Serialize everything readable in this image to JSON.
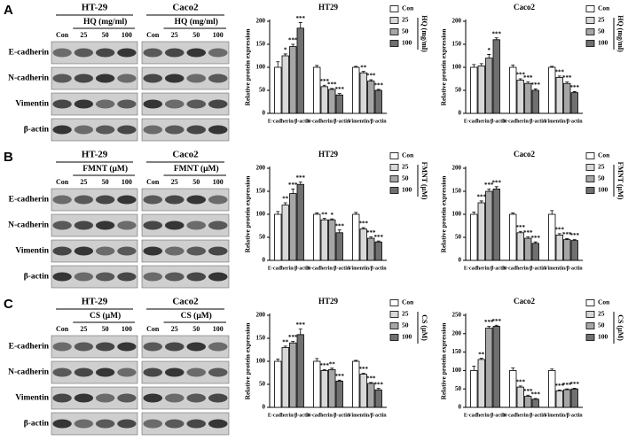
{
  "panels": [
    {
      "label": "A",
      "blot": {
        "cell_lines": [
          "HT-29",
          "Caco2"
        ],
        "treatment": "HQ (mg/ml)",
        "lanes": [
          "Con",
          "25",
          "50",
          "100"
        ],
        "proteins": [
          "E-cadherin",
          "N-cadherin",
          "Vimentin",
          "β-actin"
        ]
      }
    },
    {
      "label": "B",
      "blot": {
        "cell_lines": [
          "HT-29",
          "Caco2"
        ],
        "treatment": "FMNT (μM)",
        "lanes": [
          "Con",
          "25",
          "50",
          "100"
        ],
        "proteins": [
          "E-cadherin",
          "N-cadherin",
          "Vimentin",
          "β-actin"
        ]
      }
    },
    {
      "label": "C",
      "blot": {
        "cell_lines": [
          "HT-29",
          "Caco2"
        ],
        "treatment": "CS  (μM)",
        "lanes": [
          "Con",
          "25",
          "50",
          "100"
        ],
        "proteins": [
          "E-cadherin",
          "N-cadherin",
          "Vimentin",
          "β-actin"
        ]
      }
    }
  ],
  "chart_data": [
    {
      "type": "bar",
      "title": "HT29",
      "y_label": "Relative protein expression",
      "legend_title": "HQ (mg/ml)",
      "categories": [
        "E-cadherin/β-actin",
        "N-cadherin/β-actin",
        "Vimentin/β-actin"
      ],
      "ylim": [
        0,
        200
      ],
      "yticks": [
        0,
        50,
        100,
        150,
        200
      ],
      "series": [
        {
          "name": "Con",
          "color": "#ffffff",
          "values": [
            100,
            100,
            100
          ],
          "errors": [
            12,
            4,
            2
          ],
          "sig": [
            null,
            null,
            null
          ]
        },
        {
          "name": "25",
          "color": "#d9d9d9",
          "values": [
            125,
            58,
            88
          ],
          "errors": [
            4,
            3,
            3
          ],
          "sig": [
            "*",
            "***",
            "**"
          ]
        },
        {
          "name": "50",
          "color": "#a6a6a6",
          "values": [
            145,
            52,
            70
          ],
          "errors": [
            5,
            2,
            3
          ],
          "sig": [
            "***",
            "***",
            "***"
          ]
        },
        {
          "name": "100",
          "color": "#707070",
          "values": [
            185,
            40,
            50
          ],
          "errors": [
            12,
            3,
            2
          ],
          "sig": [
            "***",
            "***",
            "***"
          ]
        }
      ]
    },
    {
      "type": "bar",
      "title": "Caco2",
      "y_label": "Relative protein expression",
      "legend_title": "HQ (mg/ml)",
      "categories": [
        "E-cadherin/β-actin",
        "N-cadherin/β-actin",
        "Vimentin/β-actin"
      ],
      "ylim": [
        0,
        200
      ],
      "yticks": [
        0,
        50,
        100,
        150,
        200
      ],
      "series": [
        {
          "name": "Con",
          "color": "#ffffff",
          "values": [
            100,
            100,
            100
          ],
          "errors": [
            6,
            5,
            2
          ],
          "sig": [
            null,
            null,
            null
          ]
        },
        {
          "name": "25",
          "color": "#d9d9d9",
          "values": [
            103,
            72,
            78
          ],
          "errors": [
            5,
            3,
            3
          ],
          "sig": [
            null,
            "***",
            "***"
          ]
        },
        {
          "name": "50",
          "color": "#a6a6a6",
          "values": [
            120,
            65,
            65
          ],
          "errors": [
            8,
            3,
            3
          ],
          "sig": [
            "*",
            "***",
            "***"
          ]
        },
        {
          "name": "100",
          "color": "#707070",
          "values": [
            160,
            50,
            45
          ],
          "errors": [
            4,
            3,
            2
          ],
          "sig": [
            "***",
            "***",
            "***"
          ]
        }
      ]
    },
    {
      "type": "bar",
      "title": "HT29",
      "y_label": "Relative protein expression",
      "legend_title": "FMNT (μM)",
      "categories": [
        "E-cadherin/β-actin",
        "N-cadherin/β-actin",
        "Vimentin/β-actin"
      ],
      "ylim": [
        0,
        200
      ],
      "yticks": [
        0,
        50,
        100,
        150,
        200
      ],
      "series": [
        {
          "name": "Con",
          "color": "#ffffff",
          "values": [
            100,
            100,
            100
          ],
          "errors": [
            6,
            3,
            4
          ],
          "sig": [
            null,
            null,
            null
          ]
        },
        {
          "name": "25",
          "color": "#d9d9d9",
          "values": [
            120,
            88,
            68
          ],
          "errors": [
            5,
            3,
            3
          ],
          "sig": [
            "**",
            "**",
            "***"
          ]
        },
        {
          "name": "50",
          "color": "#a6a6a6",
          "values": [
            145,
            88,
            48
          ],
          "errors": [
            10,
            2,
            3
          ],
          "sig": [
            "***",
            "*",
            "***"
          ]
        },
        {
          "name": "100",
          "color": "#707070",
          "values": [
            165,
            60,
            40
          ],
          "errors": [
            5,
            6,
            2
          ],
          "sig": [
            "***",
            "***",
            "***"
          ]
        }
      ]
    },
    {
      "type": "bar",
      "title": "Caco2",
      "y_label": "Relative protein expression",
      "legend_title": "FMNT (μM)",
      "categories": [
        "E-cadherin/β-actin",
        "N-cadherin/β-actin",
        "Vimentin/β-actin"
      ],
      "ylim": [
        0,
        200
      ],
      "yticks": [
        0,
        50,
        100,
        150,
        200
      ],
      "series": [
        {
          "name": "Con",
          "color": "#ffffff",
          "values": [
            100,
            100,
            100
          ],
          "errors": [
            5,
            3,
            8
          ],
          "sig": [
            null,
            null,
            null
          ]
        },
        {
          "name": "25",
          "color": "#d9d9d9",
          "values": [
            125,
            60,
            55
          ],
          "errors": [
            4,
            3,
            3
          ],
          "sig": [
            "***",
            "***",
            "***"
          ]
        },
        {
          "name": "50",
          "color": "#a6a6a6",
          "values": [
            150,
            48,
            45
          ],
          "errors": [
            5,
            3,
            2
          ],
          "sig": [
            "***",
            "***",
            "***"
          ]
        },
        {
          "name": "100",
          "color": "#707070",
          "values": [
            155,
            37,
            43
          ],
          "errors": [
            5,
            3,
            2
          ],
          "sig": [
            "***",
            "***",
            "***"
          ]
        }
      ]
    },
    {
      "type": "bar",
      "title": "HT29",
      "y_label": "Relative protein expression",
      "legend_title": "CS  (μM)",
      "categories": [
        "E-cadherin/β-actin",
        "N-cadherin/β-actin",
        "Vimentin/β-actin"
      ],
      "ylim": [
        0,
        200
      ],
      "yticks": [
        0,
        50,
        100,
        150,
        200
      ],
      "series": [
        {
          "name": "Con",
          "color": "#ffffff",
          "values": [
            100,
            100,
            100
          ],
          "errors": [
            5,
            6,
            2
          ],
          "sig": [
            null,
            null,
            null
          ]
        },
        {
          "name": "25",
          "color": "#d9d9d9",
          "values": [
            130,
            80,
            72
          ],
          "errors": [
            3,
            2,
            2
          ],
          "sig": [
            "**",
            "***",
            "***"
          ]
        },
        {
          "name": "50",
          "color": "#a6a6a6",
          "values": [
            140,
            82,
            52
          ],
          "errors": [
            3,
            3,
            2
          ],
          "sig": [
            "***",
            "**",
            "***"
          ]
        },
        {
          "name": "100",
          "color": "#707070",
          "values": [
            158,
            57,
            38
          ],
          "errors": [
            12,
            2,
            3
          ],
          "sig": [
            "***",
            "***",
            "***"
          ]
        }
      ]
    },
    {
      "type": "bar",
      "title": "Caco2",
      "y_label": "Relative protein expression",
      "legend_title": "CS  (μM)",
      "categories": [
        "E-cadherin/β-actin",
        "N-cadherin/β-actin",
        "Vimentin/β-actin"
      ],
      "ylim": [
        0,
        250
      ],
      "yticks": [
        0,
        50,
        100,
        150,
        200,
        250
      ],
      "series": [
        {
          "name": "Con",
          "color": "#ffffff",
          "values": [
            100,
            100,
            100
          ],
          "errors": [
            12,
            7,
            4
          ],
          "sig": [
            null,
            null,
            null
          ]
        },
        {
          "name": "25",
          "color": "#d9d9d9",
          "values": [
            130,
            55,
            45
          ],
          "errors": [
            3,
            3,
            2
          ],
          "sig": [
            "**",
            "***",
            "***"
          ]
        },
        {
          "name": "50",
          "color": "#a6a6a6",
          "values": [
            215,
            30,
            48
          ],
          "errors": [
            5,
            3,
            2
          ],
          "sig": [
            "***",
            "***",
            "***"
          ]
        },
        {
          "name": "100",
          "color": "#707070",
          "values": [
            220,
            22,
            50
          ],
          "errors": [
            3,
            2,
            2
          ],
          "sig": [
            "***",
            "***",
            "***"
          ]
        }
      ]
    }
  ]
}
